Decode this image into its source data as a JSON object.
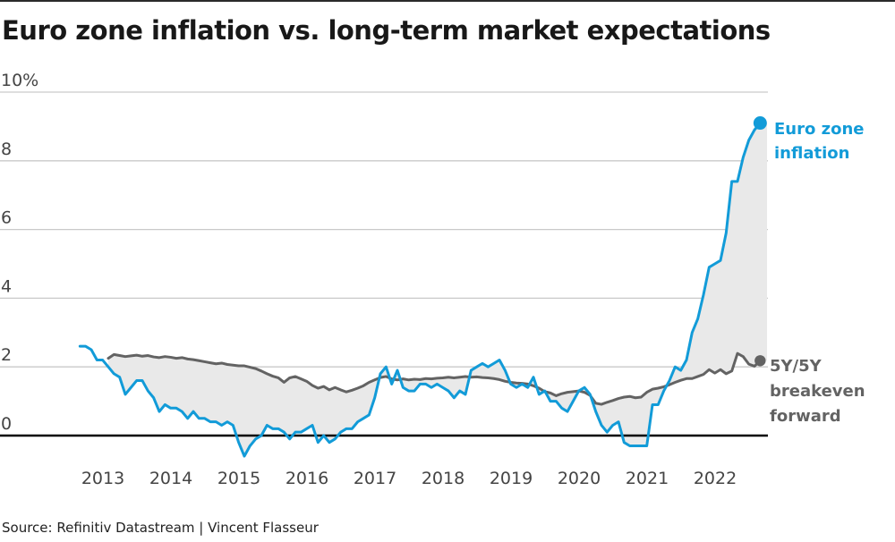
{
  "page": {
    "top_border_color": "#2a2a2a",
    "background": "#ffffff"
  },
  "header": {
    "title": "Euro zone inflation vs. long-term market expectations"
  },
  "footer": {
    "source": "Source: Refinitiv Datastream | Vincent Flasseur"
  },
  "chart_data": {
    "type": "line",
    "title": "Euro zone inflation vs. long-term market expectations",
    "unit": "%",
    "grid": "horizontal-only",
    "legend_position": "right-annotations",
    "y_axis": {
      "range": [
        -0.8,
        10.4
      ],
      "ticks": [
        {
          "value": 10,
          "label": "10%"
        },
        {
          "value": 8,
          "label": "8"
        },
        {
          "value": 6,
          "label": "6"
        },
        {
          "value": 4,
          "label": "4"
        },
        {
          "value": 2,
          "label": "2"
        },
        {
          "value": 0,
          "label": "0"
        }
      ],
      "gridline_color": "#c9c9c9",
      "zero_line_color": "#000000",
      "tick_label_color": "#444444"
    },
    "x_axis": {
      "start": "2012-08",
      "end": "2022-08",
      "ticks": [
        2013,
        2014,
        2015,
        2016,
        2017,
        2018,
        2019,
        2020,
        2021,
        2022
      ],
      "tick_label_color": "#444444"
    },
    "fill_between_color": "#e9e9e9",
    "series": [
      {
        "name": "Euro zone inflation",
        "color": "#129bd8",
        "frequency": "monthly",
        "start_year": 2012,
        "start_month": 8,
        "end_dot": true,
        "values": [
          2.6,
          2.6,
          2.5,
          2.2,
          2.2,
          2.0,
          1.8,
          1.7,
          1.2,
          1.4,
          1.6,
          1.6,
          1.3,
          1.1,
          0.7,
          0.9,
          0.8,
          0.8,
          0.7,
          0.5,
          0.7,
          0.5,
          0.5,
          0.4,
          0.4,
          0.3,
          0.4,
          0.3,
          -0.2,
          -0.6,
          -0.3,
          -0.1,
          0.0,
          0.3,
          0.2,
          0.2,
          0.1,
          -0.1,
          0.1,
          0.1,
          0.2,
          0.3,
          -0.2,
          0.0,
          -0.2,
          -0.1,
          0.1,
          0.2,
          0.2,
          0.4,
          0.5,
          0.6,
          1.1,
          1.8,
          2.0,
          1.5,
          1.9,
          1.4,
          1.3,
          1.3,
          1.5,
          1.5,
          1.4,
          1.5,
          1.4,
          1.3,
          1.1,
          1.3,
          1.2,
          1.9,
          2.0,
          2.1,
          2.0,
          2.1,
          2.2,
          1.9,
          1.5,
          1.4,
          1.5,
          1.4,
          1.7,
          1.2,
          1.3,
          1.0,
          1.0,
          0.8,
          0.7,
          1.0,
          1.3,
          1.4,
          1.2,
          0.7,
          0.3,
          0.1,
          0.3,
          0.4,
          -0.2,
          -0.3,
          -0.3,
          -0.3,
          -0.3,
          0.9,
          0.9,
          1.3,
          1.6,
          2.0,
          1.9,
          2.2,
          3.0,
          3.4,
          4.1,
          4.9,
          5.0,
          5.1,
          5.9,
          7.4,
          7.4,
          8.1,
          8.6,
          8.9,
          9.1
        ]
      },
      {
        "name": "5Y/5Y breakeven forward",
        "color": "#636363",
        "frequency": "monthly",
        "start_year": 2013,
        "start_month": 1,
        "end_dot": true,
        "values": [
          2.25,
          2.36,
          2.33,
          2.3,
          2.32,
          2.34,
          2.31,
          2.33,
          2.29,
          2.27,
          2.3,
          2.28,
          2.25,
          2.27,
          2.23,
          2.21,
          2.18,
          2.15,
          2.12,
          2.09,
          2.11,
          2.07,
          2.05,
          2.03,
          2.03,
          1.99,
          1.95,
          1.88,
          1.8,
          1.73,
          1.68,
          1.55,
          1.68,
          1.72,
          1.65,
          1.58,
          1.46,
          1.38,
          1.43,
          1.33,
          1.4,
          1.33,
          1.27,
          1.32,
          1.38,
          1.45,
          1.55,
          1.62,
          1.69,
          1.72,
          1.65,
          1.62,
          1.65,
          1.62,
          1.64,
          1.63,
          1.66,
          1.65,
          1.67,
          1.68,
          1.7,
          1.68,
          1.7,
          1.72,
          1.7,
          1.71,
          1.69,
          1.68,
          1.66,
          1.63,
          1.58,
          1.55,
          1.53,
          1.52,
          1.5,
          1.45,
          1.38,
          1.28,
          1.24,
          1.16,
          1.22,
          1.26,
          1.28,
          1.3,
          1.26,
          1.17,
          0.94,
          0.91,
          0.97,
          1.02,
          1.08,
          1.12,
          1.14,
          1.1,
          1.12,
          1.26,
          1.35,
          1.38,
          1.42,
          1.48,
          1.55,
          1.61,
          1.66,
          1.66,
          1.72,
          1.78,
          1.92,
          1.82,
          1.92,
          1.8,
          1.88,
          2.39,
          2.3,
          2.08,
          2.02,
          2.18
        ]
      }
    ]
  }
}
